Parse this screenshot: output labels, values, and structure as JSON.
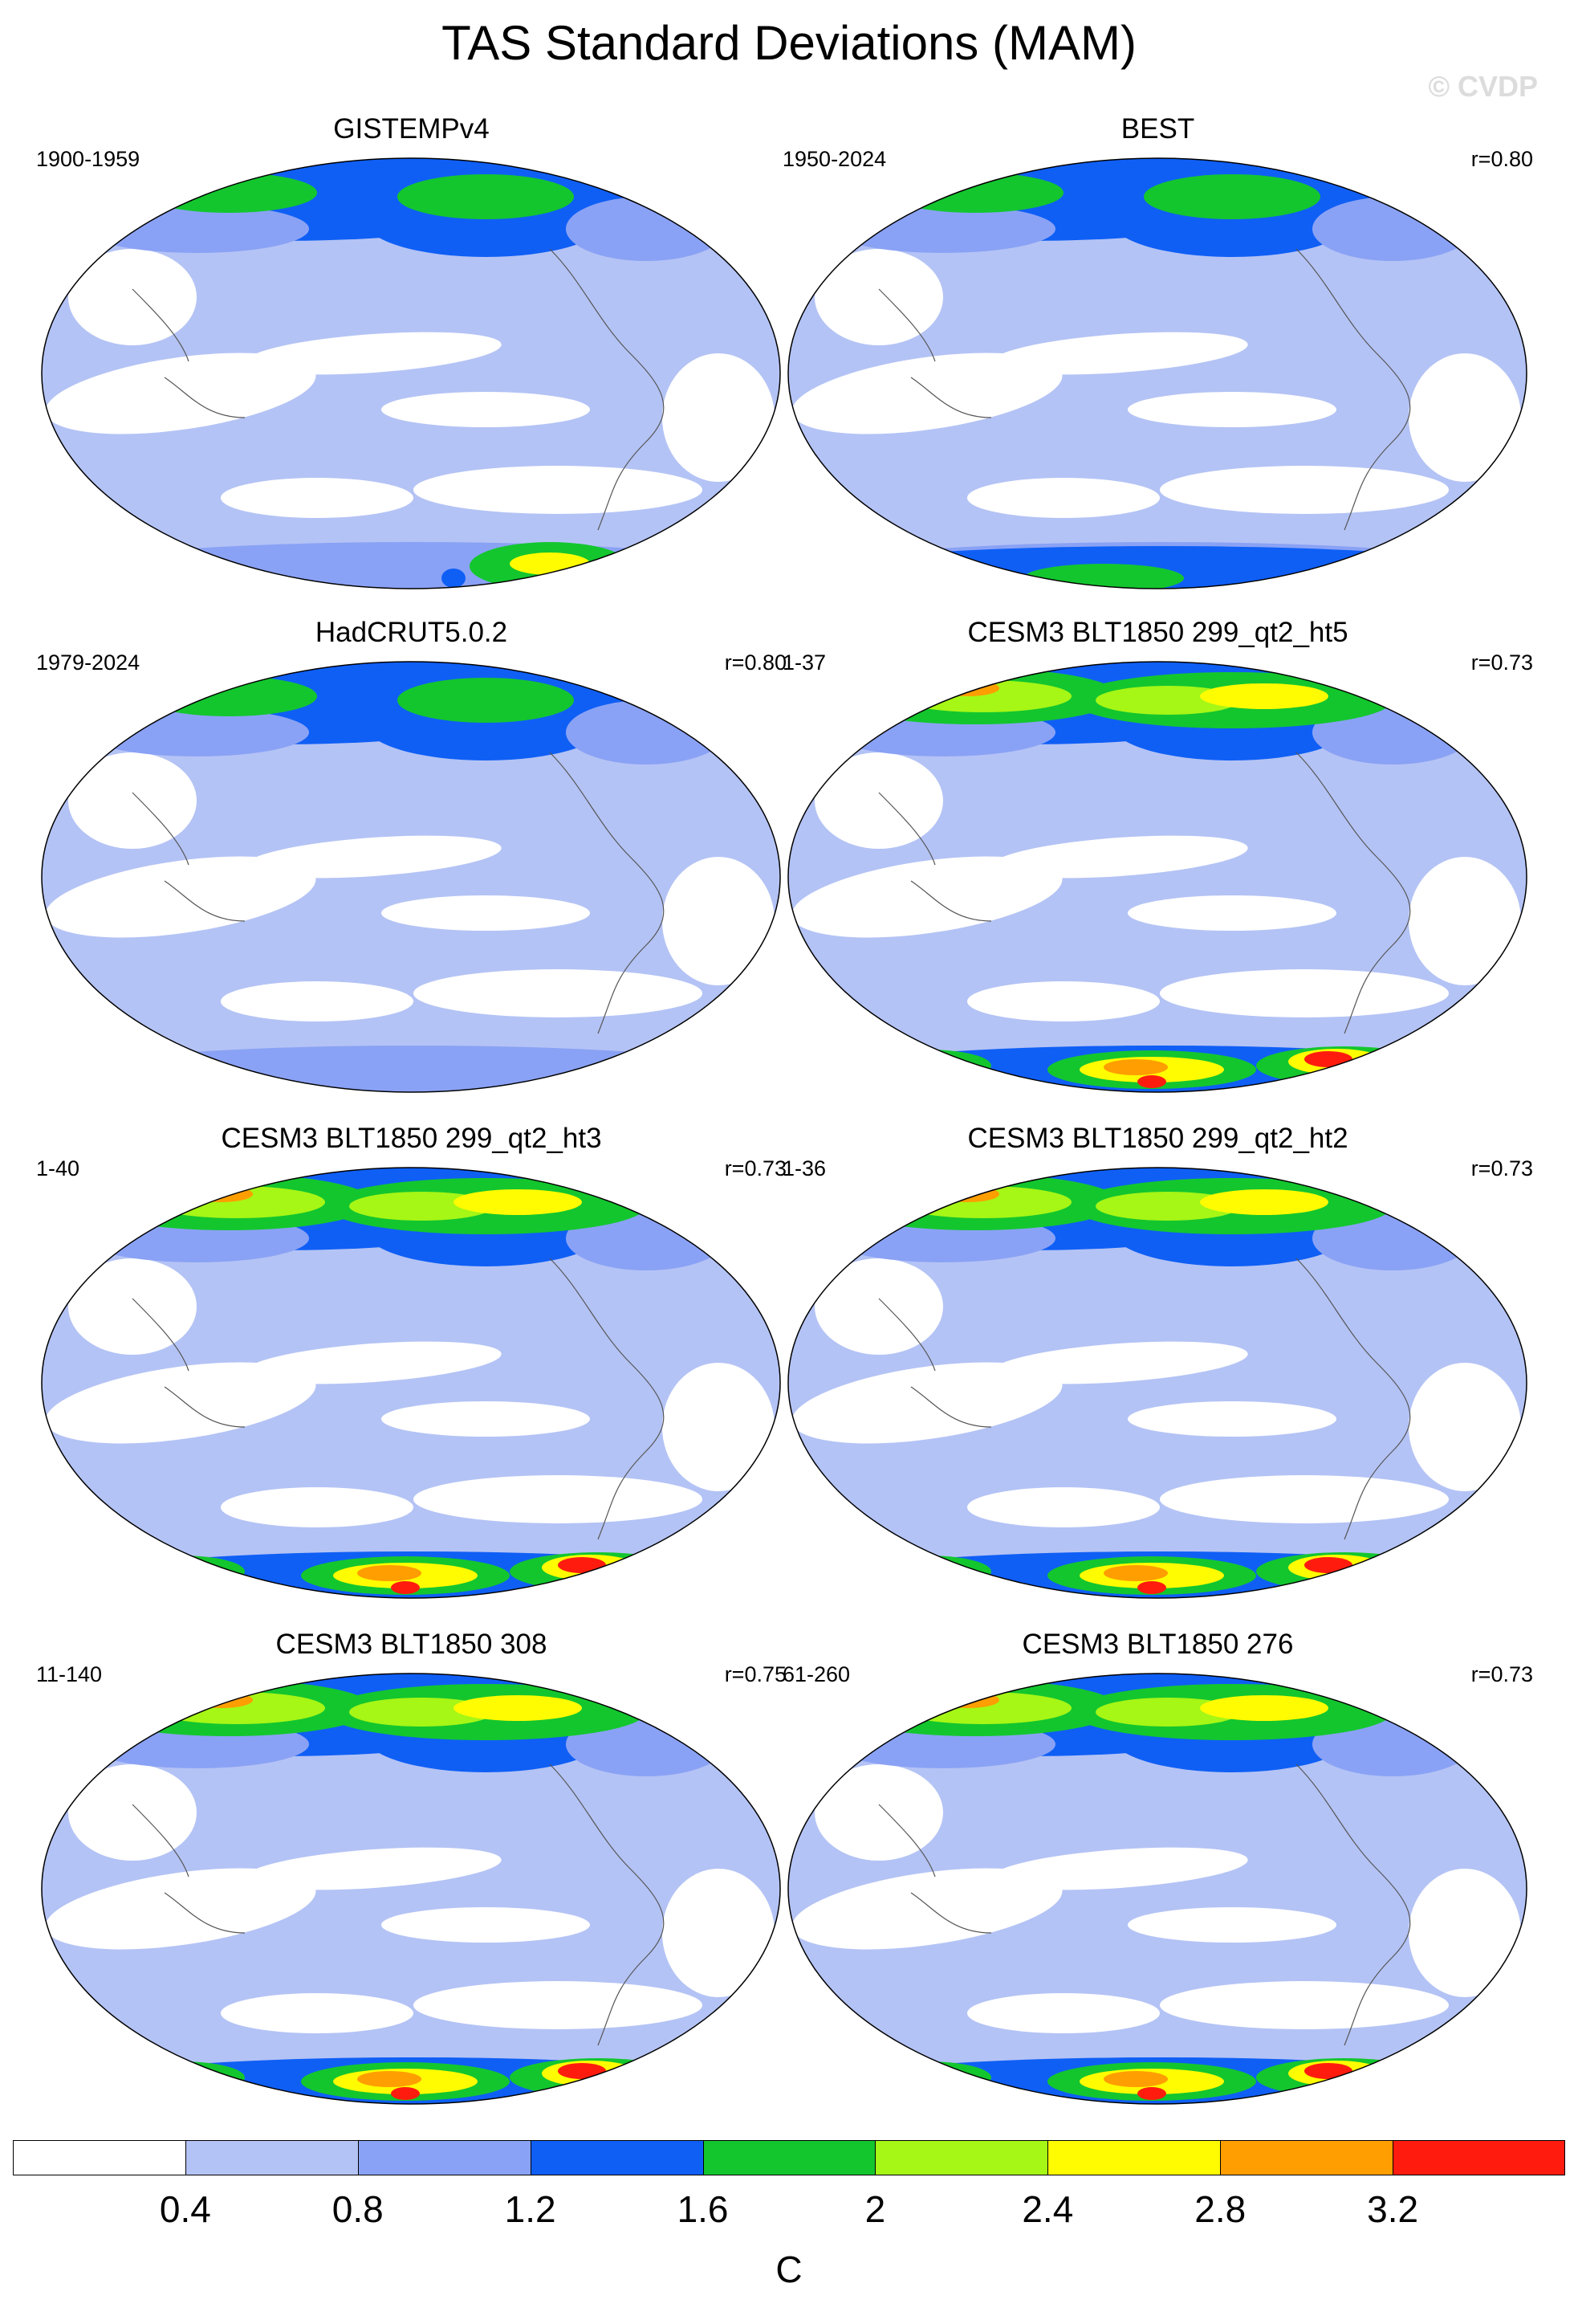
{
  "title": "TAS Standard Deviations (MAM)",
  "watermark": "© CVDP",
  "colorbar": {
    "levels": [
      "0.4",
      "0.8",
      "1.2",
      "1.6",
      "2",
      "2.4",
      "2.8",
      "3.2"
    ],
    "colors": [
      "#ffffff",
      "#b4c3f5",
      "#8aa2f5",
      "#0f5ff5",
      "#13c62e",
      "#a6f616",
      "#fffb00",
      "#ff9e00",
      "#ff1c0f"
    ],
    "unit": "C"
  },
  "panels": [
    {
      "title": "GISTEMPv4",
      "period": "1900-1959",
      "corr": ""
    },
    {
      "title": "BEST",
      "period": "1950-2024",
      "corr": "r=0.80"
    },
    {
      "title": "HadCRUT5.0.2",
      "period": "1979-2024",
      "corr": "r=0.80"
    },
    {
      "title": "CESM3 BLT1850 299_qt2_ht5",
      "period": "1-37",
      "corr": "r=0.73"
    },
    {
      "title": "CESM3 BLT1850 299_qt2_ht3",
      "period": "1-40",
      "corr": "r=0.73"
    },
    {
      "title": "CESM3 BLT1850 299_qt2_ht2",
      "period": "1-36",
      "corr": "r=0.73"
    },
    {
      "title": "CESM3 BLT1850 308",
      "period": "11-140",
      "corr": "r=0.75"
    },
    {
      "title": "CESM3 BLT1850 276",
      "period": "61-260",
      "corr": "r=0.73"
    }
  ]
}
